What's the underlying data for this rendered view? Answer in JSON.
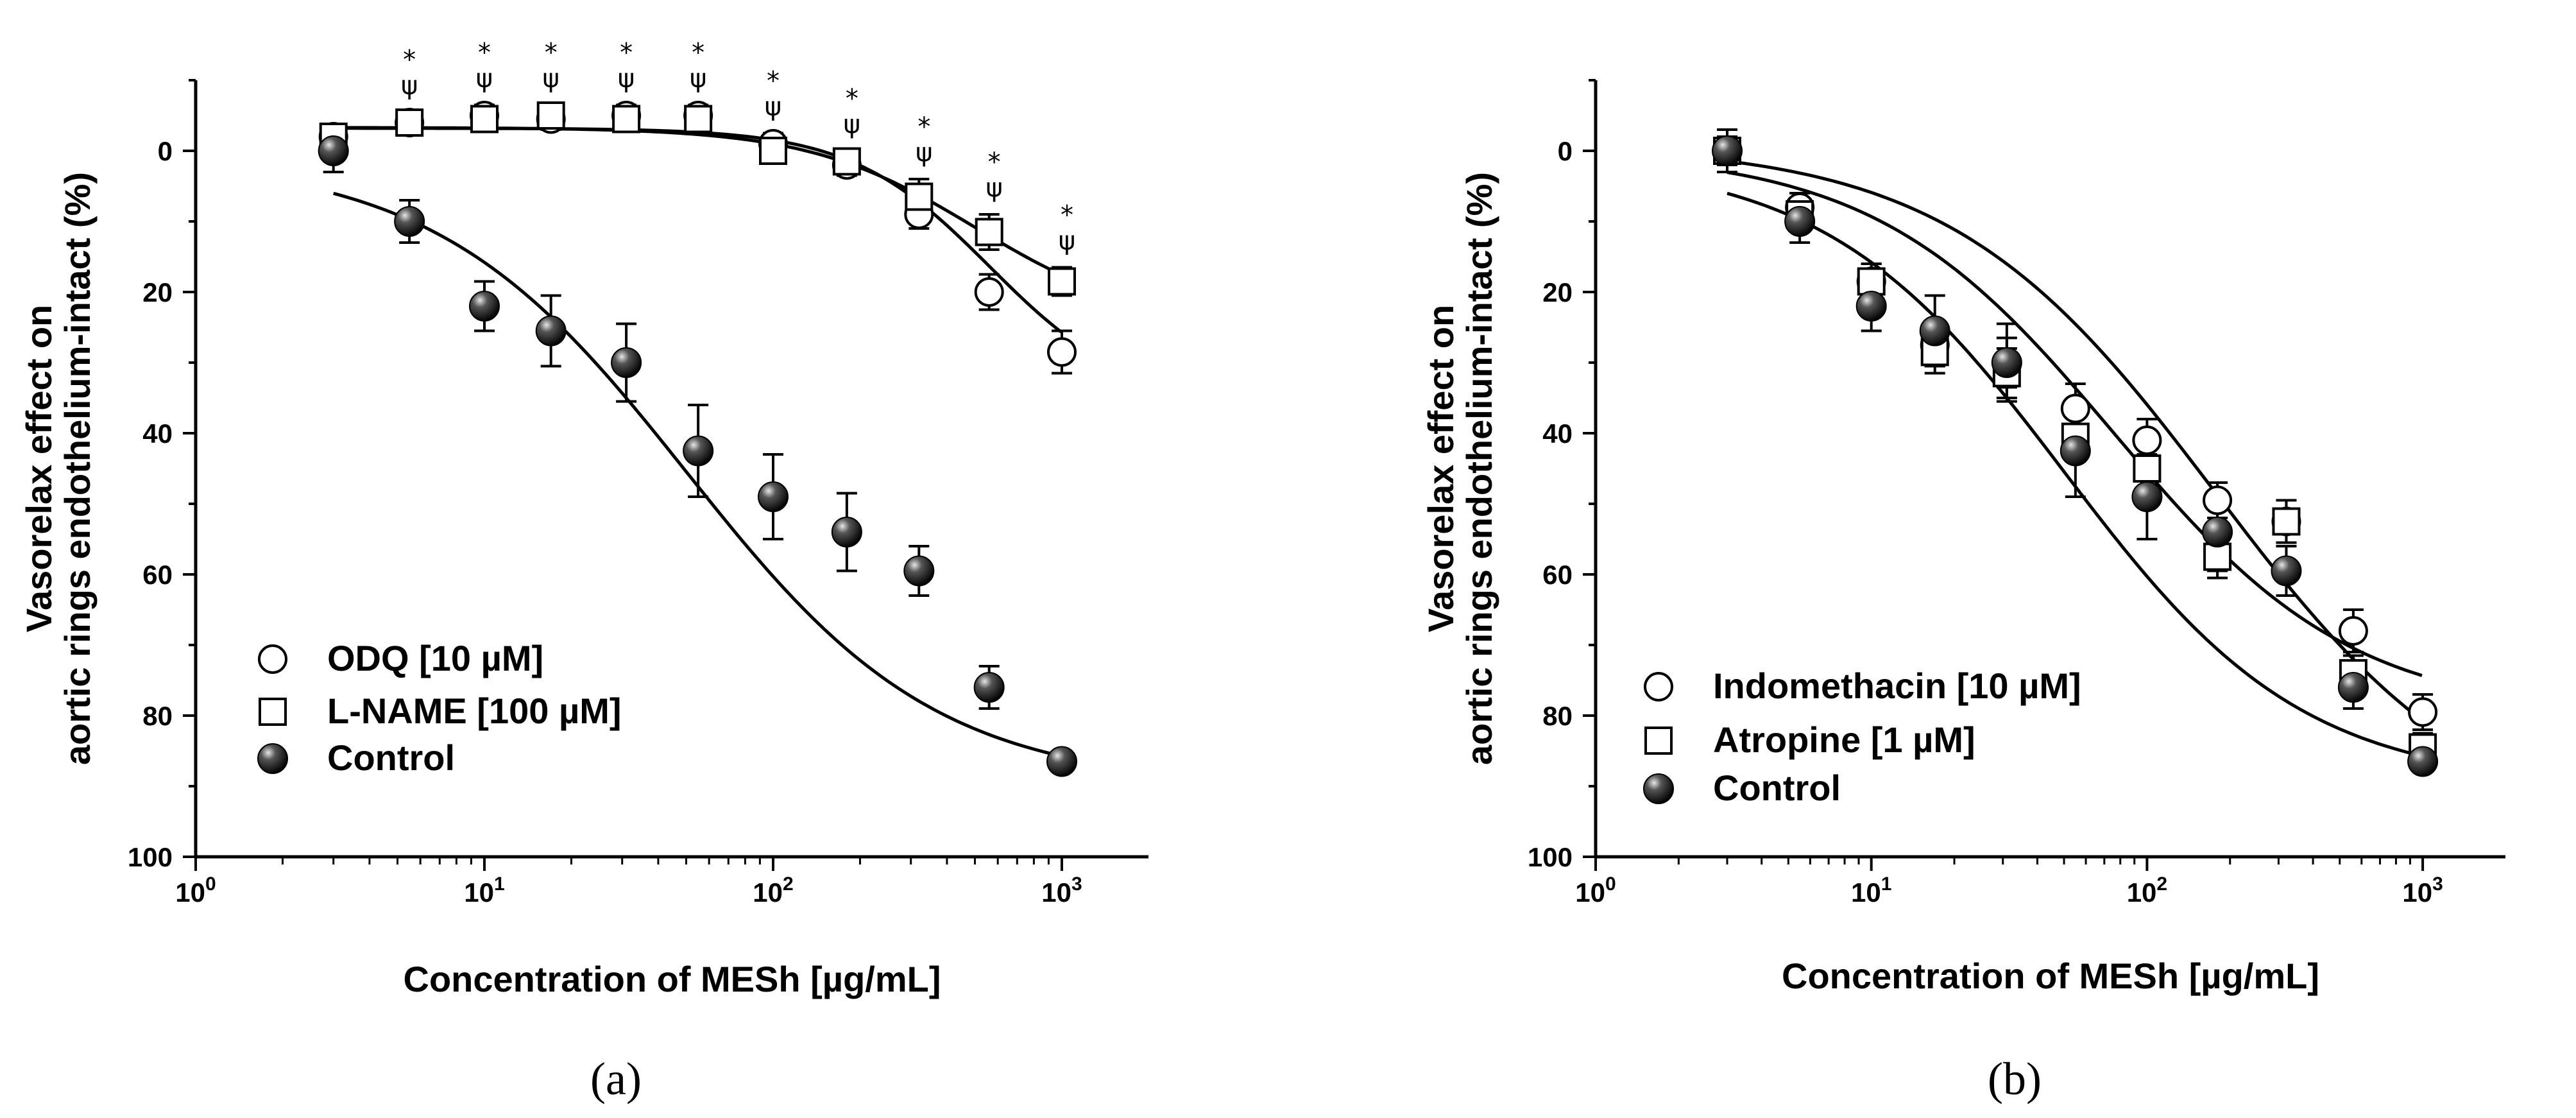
{
  "colors": {
    "ink": "#000000",
    "background": "#ffffff",
    "control_fill": "#1a1a1a",
    "open_fill": "#ffffff"
  },
  "chart_data": [
    {
      "type": "scatter",
      "panel_label": "(a)",
      "xlabel": "Concentration of MESh [µg/mL]",
      "ylabel": [
        "Vasorelax effect on",
        "aortic rings endothelium-intact (%)"
      ],
      "xscale": "log",
      "x_tick_labels": [
        "10",
        "10",
        "10",
        "10"
      ],
      "x_tick_exponents": [
        "0",
        "1",
        "2",
        "3"
      ],
      "xlim_log10": [
        0,
        3.3
      ],
      "ylim": [
        100,
        -10
      ],
      "y_inverted": true,
      "y_ticks": [
        0,
        20,
        40,
        60,
        80,
        100
      ],
      "legend_position": "bottom-left",
      "significance_markers": [
        "*",
        "ψ"
      ],
      "series": [
        {
          "name": "ODQ [10 µM]",
          "marker": "open-circle",
          "x": [
            3,
            5.5,
            10,
            17,
            31,
            55,
            100,
            180,
            320,
            560,
            1000
          ],
          "y": [
            -2,
            -4,
            -5,
            -4.5,
            -5,
            -5,
            -1,
            2,
            9,
            20,
            28.5
          ],
          "err": [
            1.5,
            1.5,
            1.5,
            1.5,
            1.5,
            1.5,
            1.5,
            1.5,
            2,
            2.5,
            3
          ],
          "fit": {
            "bottom": -3.2,
            "top": 36,
            "log_ec50": 2.75,
            "hill": 1.8
          }
        },
        {
          "name": "L-NAME [100 µM]",
          "marker": "open-square",
          "x": [
            3,
            5.5,
            10,
            17,
            31,
            55,
            100,
            180,
            320,
            560,
            1000
          ],
          "y": [
            -2,
            -4,
            -4.5,
            -5,
            -4.5,
            -4.5,
            0,
            1.5,
            6.5,
            11.5,
            18.5
          ],
          "err": [
            1.5,
            1.5,
            1.5,
            1.5,
            1.5,
            1.5,
            1.5,
            1.5,
            2.5,
            2.5,
            2
          ],
          "fit": {
            "bottom": -3.3,
            "top": 25,
            "log_ec50": 2.7,
            "hill": 1.5
          }
        },
        {
          "name": "Control",
          "marker": "filled-sphere",
          "x": [
            3,
            5.5,
            10,
            17,
            31,
            55,
            100,
            180,
            320,
            560,
            1000
          ],
          "y": [
            0,
            10,
            22,
            25.5,
            30,
            42.5,
            49,
            54,
            59.5,
            76,
            86.5
          ],
          "err": [
            3,
            3,
            3.5,
            5,
            5.5,
            6.5,
            6,
            5.5,
            3.5,
            3,
            1
          ],
          "fit": {
            "bottom": 1,
            "top": 90,
            "log_ec50": 1.7,
            "hill": 1.0
          }
        }
      ],
      "significant_x": [
        5.5,
        10,
        17,
        31,
        55,
        100,
        180,
        320,
        560,
        1000
      ]
    },
    {
      "type": "scatter",
      "panel_label": "(b)",
      "xlabel": "Concentration of MESh [µg/mL]",
      "ylabel": [
        "Vasorelax effect on",
        "aortic rings endothelium-intact (%)"
      ],
      "xscale": "log",
      "x_tick_labels": [
        "10",
        "10",
        "10",
        "10"
      ],
      "x_tick_exponents": [
        "0",
        "1",
        "2",
        "3"
      ],
      "xlim_log10": [
        0,
        3.3
      ],
      "ylim": [
        100,
        -10
      ],
      "y_inverted": true,
      "y_ticks": [
        0,
        20,
        40,
        60,
        80,
        100
      ],
      "legend_position": "bottom-left",
      "series": [
        {
          "name": "Indomethacin [10 µM]",
          "marker": "open-circle",
          "x": [
            3,
            5.5,
            10,
            17,
            31,
            55,
            100,
            180,
            320,
            560,
            1000
          ],
          "y": [
            0,
            8,
            18.5,
            27.5,
            30,
            36.5,
            41,
            49.5,
            52.5,
            68,
            79.5
          ],
          "err": [
            2,
            2,
            2.5,
            3,
            3.5,
            3.5,
            3,
            2.5,
            3,
            3,
            2.5
          ],
          "fit": {
            "bottom": 0,
            "top": 80,
            "log_ec50": 1.88,
            "hill": 1.0
          }
        },
        {
          "name": "Atropine [1 µM]",
          "marker": "open-square",
          "x": [
            3,
            5.5,
            10,
            17,
            31,
            55,
            100,
            180,
            320,
            560,
            1000
          ],
          "y": [
            0,
            9,
            18.5,
            28.5,
            31.5,
            40.5,
            45,
            57.5,
            52.5,
            74,
            84.5
          ],
          "err": [
            2,
            2,
            2.5,
            3,
            3.5,
            3.5,
            3,
            3,
            3,
            2.5,
            2
          ],
          "fit": {
            "bottom": -1,
            "top": 98,
            "log_ec50": 2.25,
            "hill": 0.9
          }
        },
        {
          "name": "Control",
          "marker": "filled-sphere",
          "x": [
            3,
            5.5,
            10,
            17,
            31,
            55,
            100,
            180,
            320,
            560,
            1000
          ],
          "y": [
            0,
            10,
            22,
            25.5,
            30,
            42.5,
            49,
            54,
            59.5,
            76,
            86.5
          ],
          "err": [
            3,
            3,
            3.5,
            5,
            5.5,
            6.5,
            6,
            5.5,
            3.5,
            3,
            1
          ],
          "fit": {
            "bottom": 1,
            "top": 90,
            "log_ec50": 1.7,
            "hill": 1.0
          }
        }
      ]
    }
  ]
}
